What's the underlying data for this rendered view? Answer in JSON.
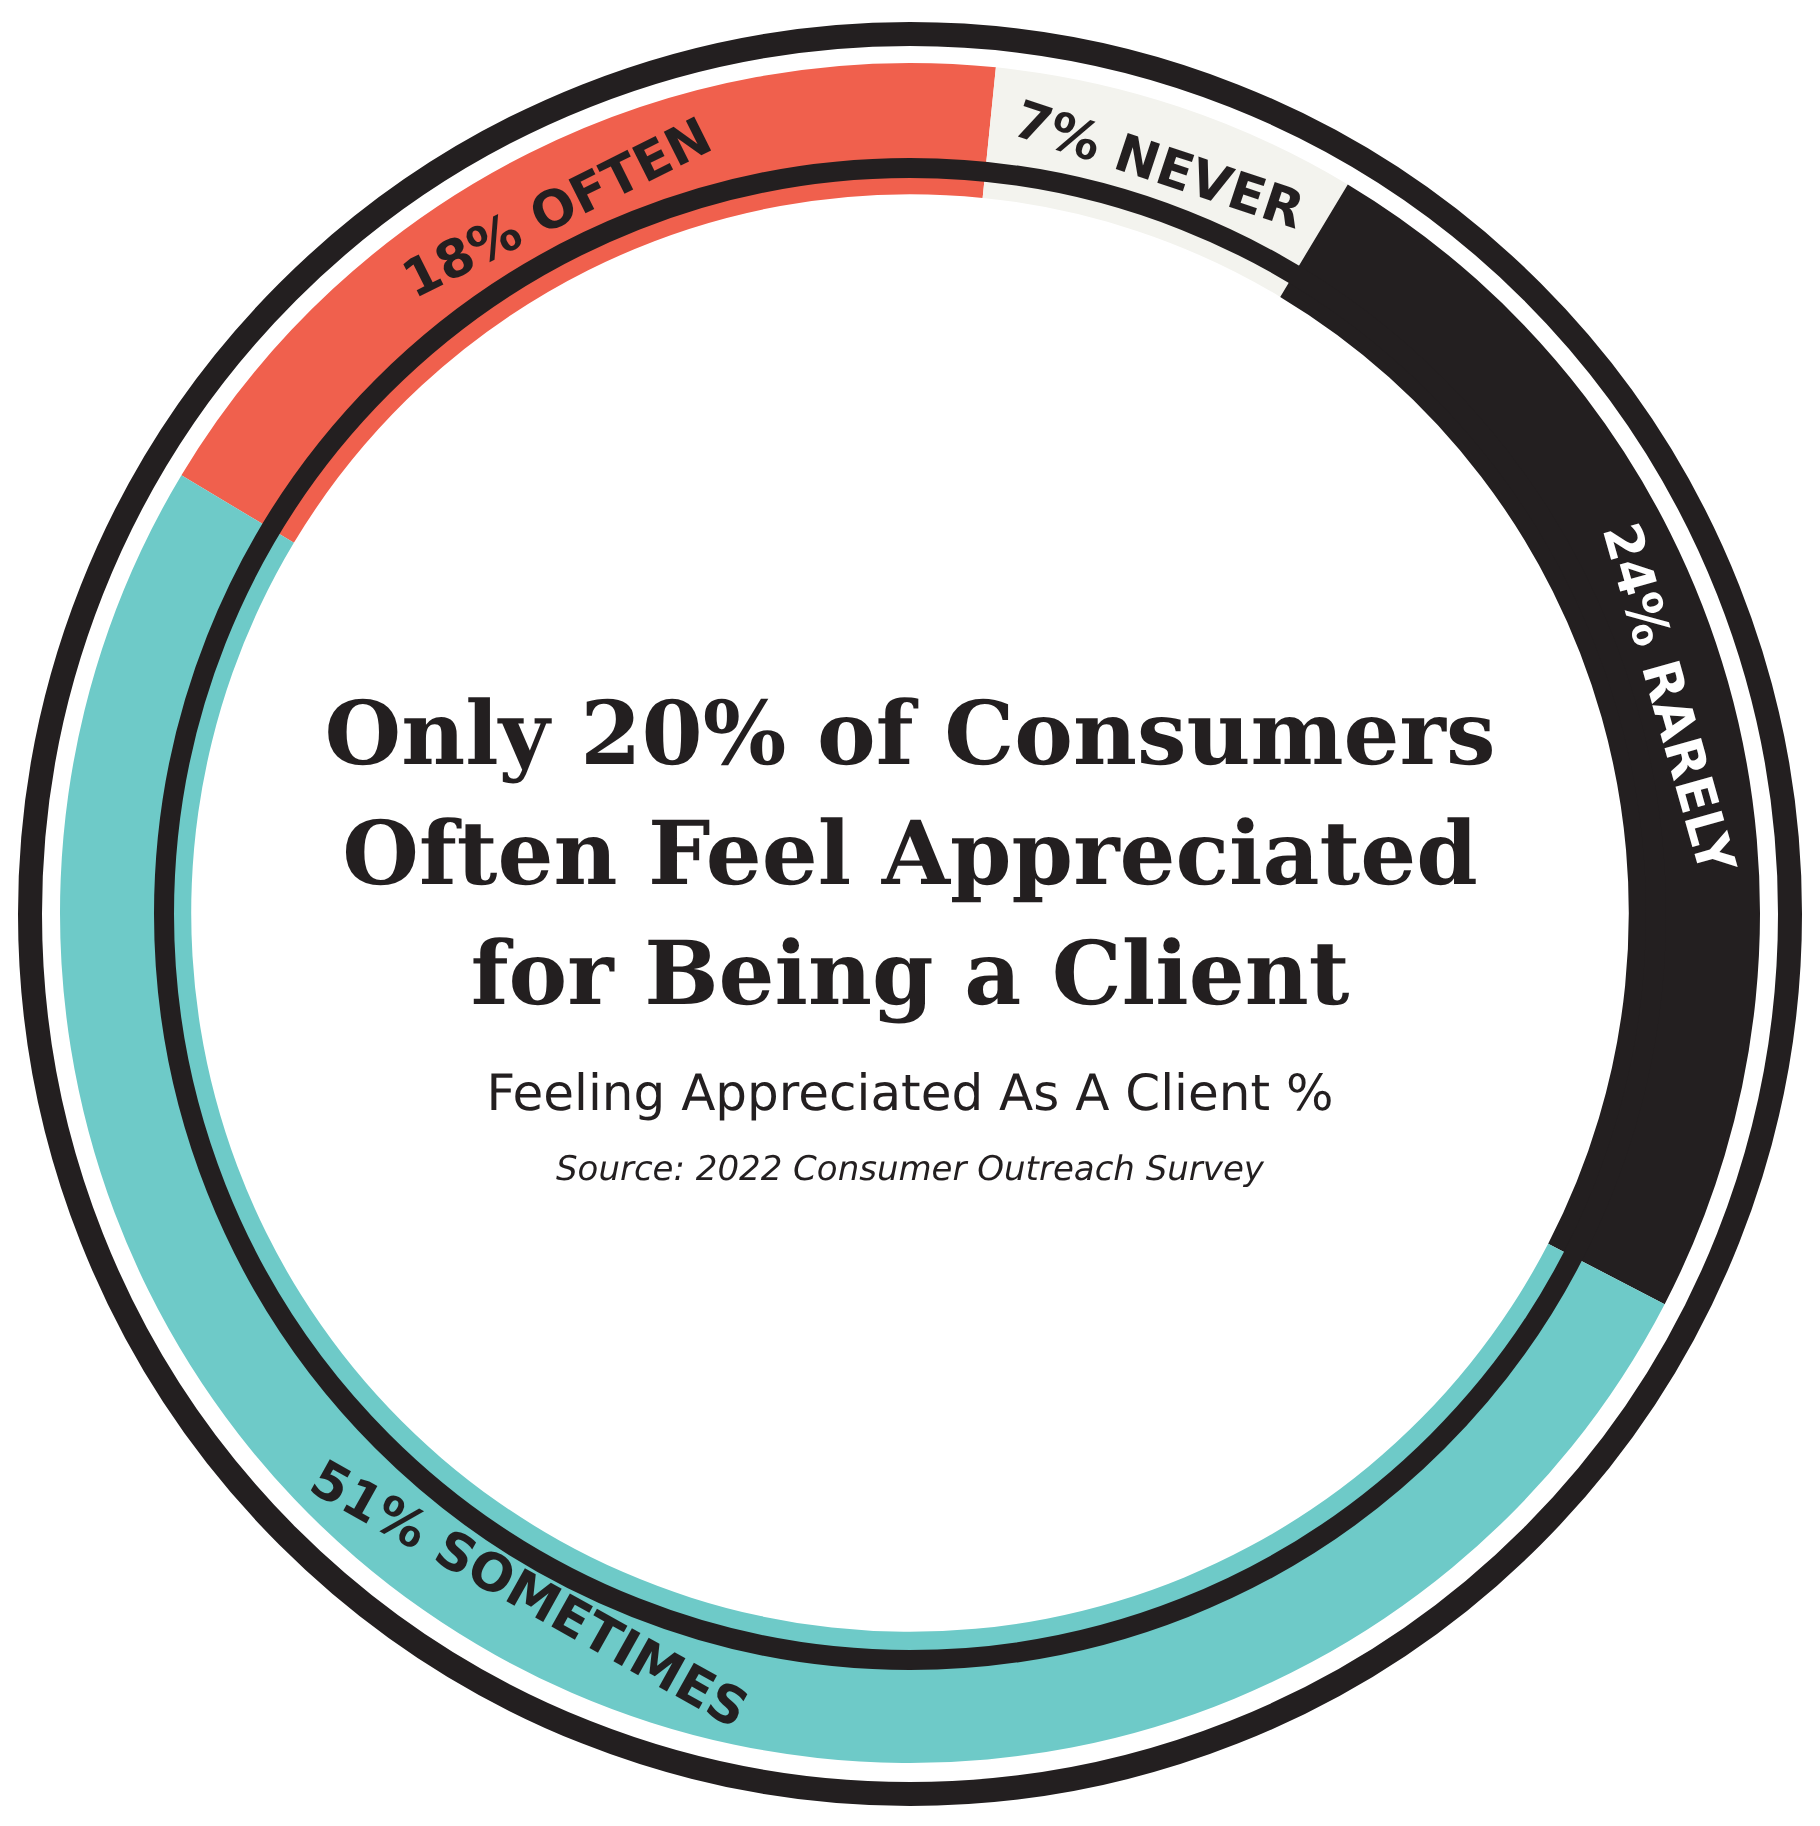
{
  "chart_data": {
    "type": "donut",
    "title": "Only 20% of Consumers Often Feel Appreciated for Being a Client",
    "subtitle": "Feeling Appreciated As A Client %",
    "annotations": [
      "Source: 2022 Consumer Outreach Survey"
    ],
    "categories": [
      "18% OFTEN",
      "7% NEVER",
      "24% RARELY",
      "51% SOMETIMES"
    ],
    "values": [
      18,
      7,
      24,
      51
    ],
    "colors": [
      "#f0604d",
      "#f3f3ee",
      "#231f20",
      "#6ecac8"
    ],
    "legend": false
  }
}
